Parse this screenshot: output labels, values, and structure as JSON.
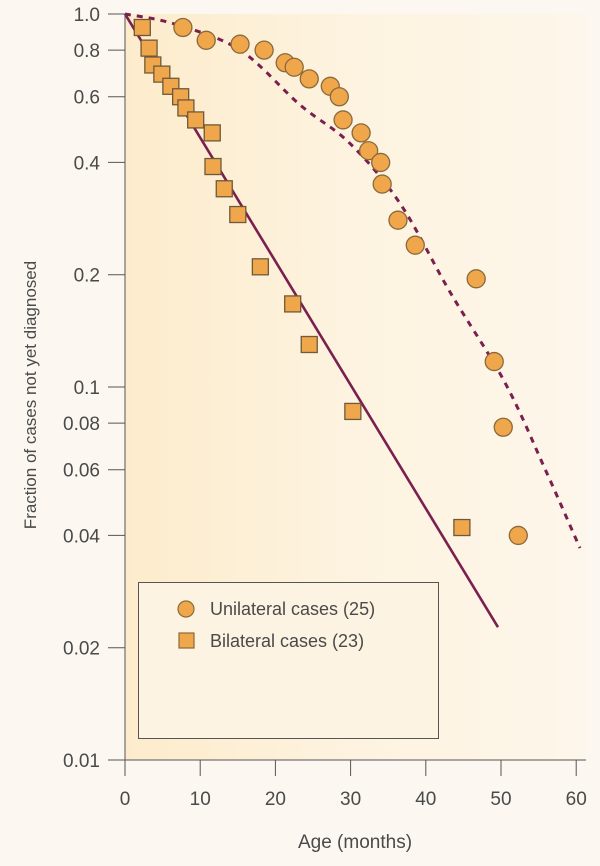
{
  "chart_data": {
    "type": "scatter",
    "title": "",
    "xlabel": "Age (months)",
    "ylabel": "Fraction of cases not yet diagnosed",
    "xlim": [
      0,
      61.5
    ],
    "ylim": [
      0.01,
      1.0
    ],
    "yscale": "log",
    "grid": false,
    "x_ticks": [
      0,
      10,
      20,
      30,
      40,
      50,
      60
    ],
    "x_tick_labels": [
      "0",
      "10",
      "20",
      "30",
      "40",
      "50",
      "60"
    ],
    "y_ticks": [
      1.0,
      0.8,
      0.6,
      0.4,
      0.2,
      0.1,
      0.08,
      0.06,
      0.04,
      0.02,
      0.01
    ],
    "y_tick_labels": [
      "1.0",
      "0.8",
      "0.6",
      "0.4",
      "0.2",
      "0.1",
      "0.08",
      "0.06",
      "0.04",
      "0.02",
      "0.01"
    ],
    "legend_position": "bottom-left",
    "series": [
      {
        "name": "Unilateral cases (25)",
        "marker": "circle",
        "color": "#f0a64b",
        "x": [
          7.7,
          10.8,
          15.3,
          18.5,
          21.3,
          22.5,
          24.5,
          27.3,
          28.5,
          29.0,
          31.4,
          32.4,
          34.0,
          34.2,
          36.3,
          38.6,
          46.7,
          49.1,
          50.3,
          52.3
        ],
        "y": [
          0.92,
          0.85,
          0.83,
          0.8,
          0.74,
          0.72,
          0.67,
          0.64,
          0.6,
          0.52,
          0.48,
          0.43,
          0.4,
          0.35,
          0.28,
          0.24,
          0.195,
          0.117,
          0.078,
          0.04
        ]
      },
      {
        "name": "Bilateral cases (23)",
        "marker": "square",
        "color": "#f0a64b",
        "x": [
          2.3,
          3.2,
          3.7,
          4.9,
          6.1,
          7.4,
          8.1,
          9.4,
          11.6,
          11.7,
          13.2,
          15.0,
          18.0,
          22.3,
          24.5,
          30.3,
          44.8
        ],
        "y": [
          0.92,
          0.81,
          0.73,
          0.69,
          0.64,
          0.6,
          0.56,
          0.52,
          0.48,
          0.39,
          0.34,
          0.29,
          0.21,
          0.167,
          0.13,
          0.086,
          0.042
        ]
      }
    ],
    "fit_lines": [
      {
        "name": "bilateral-fit",
        "style": "solid",
        "color": "#7a1f4e",
        "x": [
          0,
          49.6
        ],
        "y": [
          1.0,
          0.0227
        ]
      },
      {
        "name": "unilateral-fit",
        "style": "dashed",
        "color": "#7a1f4e",
        "x": [
          0,
          6.6,
          15.3,
          23.3,
          29.9,
          36.6,
          43.2,
          50.5,
          55.9,
          60.5
        ],
        "y": [
          1.0,
          0.94,
          0.8,
          0.57,
          0.45,
          0.31,
          0.18,
          0.103,
          0.06,
          0.037
        ]
      }
    ]
  }
}
